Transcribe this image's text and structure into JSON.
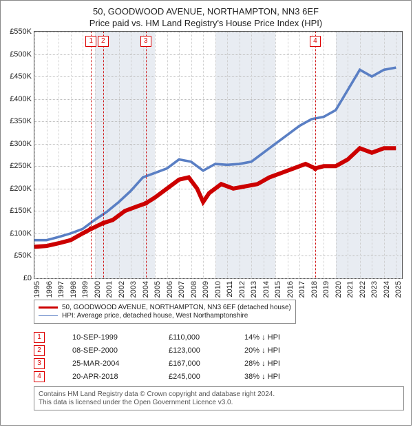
{
  "title": "50, GOODWOOD AVENUE, NORTHAMPTON, NN3 6EF",
  "subtitle": "Price paid vs. HM Land Registry's House Price Index (HPI)",
  "chart": {
    "background_color": "#ffffff",
    "plot_bg_alt": "#e8ecf2",
    "grid_color": "#bbbbbb",
    "minor_grid_color": "#cccccc",
    "event_line_color": "#cc0000",
    "x": {
      "min": 1995,
      "max": 2025.5,
      "ticks_step": 1,
      "labels_from": 1995,
      "labels_to": 2025
    },
    "y": {
      "min": 0,
      "max": 550000,
      "ticks_step": 50000,
      "prefix": "£",
      "suffix": "K",
      "divisor": 1000
    },
    "series": [
      {
        "name": "price_paid",
        "label": "50, GOODWOOD AVENUE, NORTHAMPTON, NN3 6EF (detached house)",
        "color": "#cc0000",
        "width": 2,
        "points": [
          [
            1995.0,
            70000
          ],
          [
            1996.0,
            72000
          ],
          [
            1997.0,
            78000
          ],
          [
            1998.0,
            85000
          ],
          [
            1999.0,
            100000
          ],
          [
            1999.7,
            110000
          ],
          [
            2000.7,
            123000
          ],
          [
            2001.5,
            130000
          ],
          [
            2002.5,
            150000
          ],
          [
            2003.5,
            160000
          ],
          [
            2004.23,
            167000
          ],
          [
            2005.0,
            180000
          ],
          [
            2006.0,
            200000
          ],
          [
            2007.0,
            220000
          ],
          [
            2007.8,
            225000
          ],
          [
            2008.5,
            200000
          ],
          [
            2009.0,
            170000
          ],
          [
            2009.5,
            190000
          ],
          [
            2010.5,
            210000
          ],
          [
            2011.5,
            200000
          ],
          [
            2012.5,
            205000
          ],
          [
            2013.5,
            210000
          ],
          [
            2014.5,
            225000
          ],
          [
            2015.5,
            235000
          ],
          [
            2016.5,
            245000
          ],
          [
            2017.5,
            255000
          ],
          [
            2018.3,
            245000
          ],
          [
            2019.0,
            250000
          ],
          [
            2020.0,
            250000
          ],
          [
            2021.0,
            265000
          ],
          [
            2022.0,
            290000
          ],
          [
            2023.0,
            280000
          ],
          [
            2024.0,
            290000
          ],
          [
            2025.0,
            290000
          ]
        ]
      },
      {
        "name": "hpi",
        "label": "HPI: Average price, detached house, West Northamptonshire",
        "color": "#5a7fc4",
        "width": 1.2,
        "points": [
          [
            1995.0,
            85000
          ],
          [
            1996.0,
            85000
          ],
          [
            1997.0,
            92000
          ],
          [
            1998.0,
            100000
          ],
          [
            1999.0,
            110000
          ],
          [
            2000.0,
            130000
          ],
          [
            2001.0,
            148000
          ],
          [
            2002.0,
            170000
          ],
          [
            2003.0,
            195000
          ],
          [
            2004.0,
            225000
          ],
          [
            2005.0,
            235000
          ],
          [
            2006.0,
            245000
          ],
          [
            2007.0,
            265000
          ],
          [
            2008.0,
            260000
          ],
          [
            2009.0,
            240000
          ],
          [
            2010.0,
            255000
          ],
          [
            2011.0,
            253000
          ],
          [
            2012.0,
            255000
          ],
          [
            2013.0,
            260000
          ],
          [
            2014.0,
            280000
          ],
          [
            2015.0,
            300000
          ],
          [
            2016.0,
            320000
          ],
          [
            2017.0,
            340000
          ],
          [
            2018.0,
            355000
          ],
          [
            2019.0,
            360000
          ],
          [
            2020.0,
            375000
          ],
          [
            2021.0,
            420000
          ],
          [
            2022.0,
            465000
          ],
          [
            2023.0,
            450000
          ],
          [
            2024.0,
            465000
          ],
          [
            2025.0,
            470000
          ]
        ]
      }
    ],
    "markers": [
      {
        "idx": "1",
        "year": 1999.7,
        "value": 110000,
        "color": "#cc0000"
      },
      {
        "idx": "2",
        "year": 2000.7,
        "value": 123000,
        "color": "#cc0000"
      },
      {
        "idx": "3",
        "year": 2004.23,
        "value": 167000,
        "color": "#cc0000"
      },
      {
        "idx": "4",
        "year": 2018.3,
        "value": 245000,
        "color": "#cc0000"
      }
    ],
    "alt_bands": [
      [
        2000,
        2005
      ],
      [
        2010,
        2015
      ],
      [
        2020,
        2025.5
      ]
    ]
  },
  "legend": {
    "items": [
      {
        "color": "#cc0000",
        "width": 2,
        "label": "50, GOODWOOD AVENUE, NORTHAMPTON, NN3 6EF (detached house)"
      },
      {
        "color": "#5a7fc4",
        "width": 1,
        "label": "HPI: Average price, detached house, West Northamptonshire"
      }
    ]
  },
  "events": [
    {
      "idx": "1",
      "date": "10-SEP-1999",
      "price": "£110,000",
      "diff": "14% ↓ HPI"
    },
    {
      "idx": "2",
      "date": "08-SEP-2000",
      "price": "£123,000",
      "diff": "20% ↓ HPI"
    },
    {
      "idx": "3",
      "date": "25-MAR-2004",
      "price": "£167,000",
      "diff": "28% ↓ HPI"
    },
    {
      "idx": "4",
      "date": "20-APR-2018",
      "price": "£245,000",
      "diff": "38% ↓ HPI"
    }
  ],
  "footnote": {
    "line1": "Contains HM Land Registry data © Crown copyright and database right 2024.",
    "line2": "This data is licensed under the Open Government Licence v3.0."
  }
}
